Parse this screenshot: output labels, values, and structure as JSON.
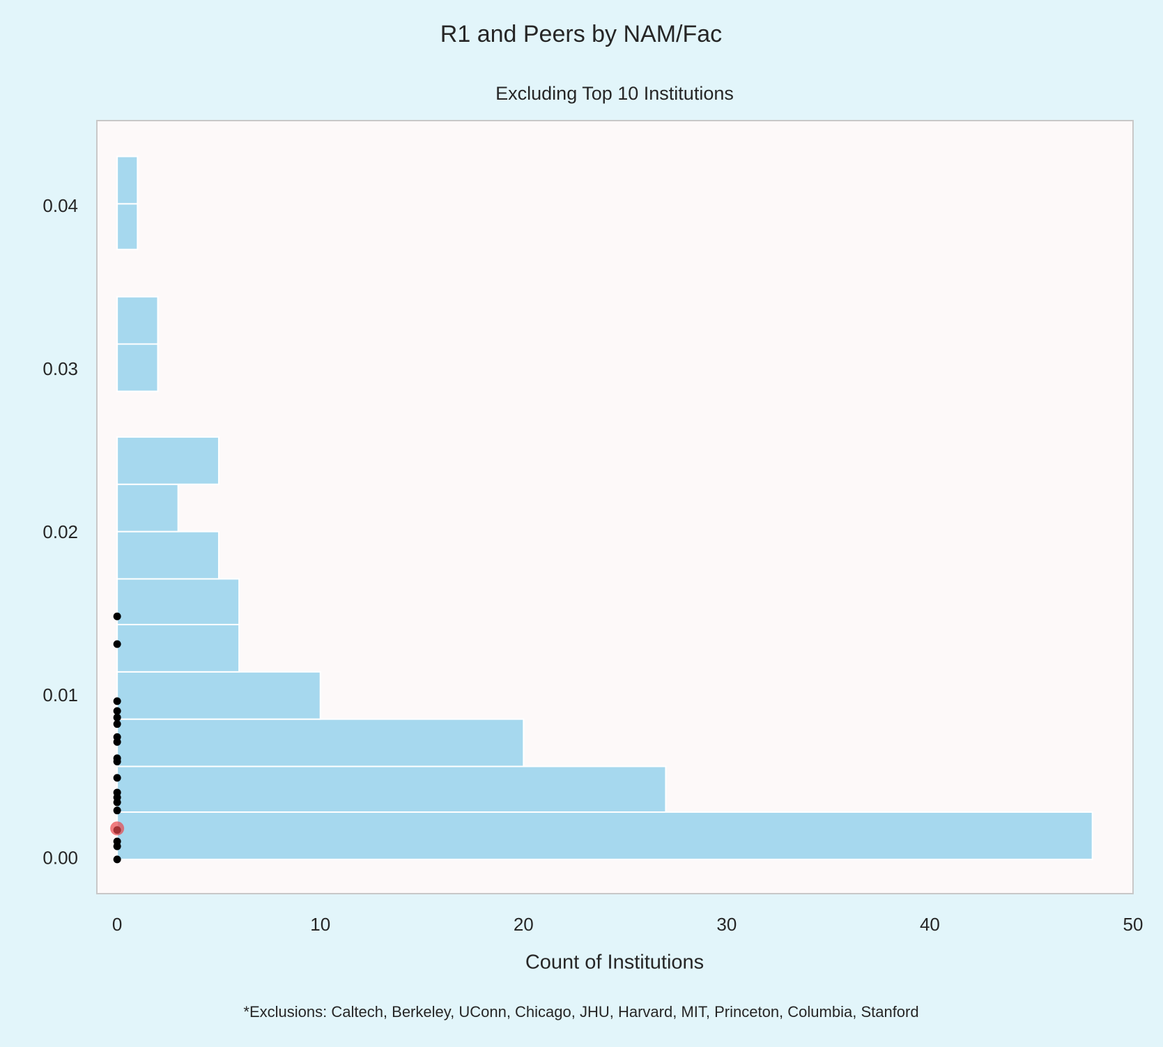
{
  "chart_data": {
    "type": "histogram",
    "orientation": "horizontal",
    "title": "R1 and Peers by NAM/Fac",
    "subtitle": "Excluding Top 10 Institutions",
    "x_label": "Count of Institutions",
    "footnote": "*Exclusions: Caltech, Berkeley, UConn, Chicago, JHU, Harvard, MIT, Princeton, Columbia, Stanford",
    "bins": [
      0,
      0.0029,
      0.0057,
      0.0086,
      0.0115,
      0.0144,
      0.0172,
      0.0201,
      0.023,
      0.0259,
      0.0287,
      0.0316,
      0.0345,
      0.0374,
      0.0402,
      0.0431
    ],
    "counts": [
      48,
      27,
      20,
      10,
      6,
      6,
      5,
      3,
      5,
      0,
      2,
      2,
      0,
      1,
      1
    ],
    "color": "#a6d8ee",
    "points": [
      {
        "color": "#000000",
        "x": [
          0,
          0,
          0,
          0,
          0,
          0,
          0,
          0,
          0,
          0,
          0,
          0,
          0,
          0,
          0,
          0,
          0,
          0,
          0
        ],
        "values": [
          0.0149,
          0.0132,
          0.0097,
          0.0091,
          0.0087,
          0.0083,
          0.0075,
          0.0072,
          0.0062,
          0.006,
          0.005,
          0.0041,
          0.0038,
          0.0035,
          0.003,
          0.0018,
          0.0011,
          0.0008,
          0
        ]
      },
      {
        "color": "#e8474c",
        "x": [
          0
        ],
        "values": [
          0.0019
        ]
      }
    ],
    "xlim": [
      -1,
      50
    ],
    "xticks": [
      0,
      10,
      20,
      30,
      40,
      50
    ],
    "ylim": [
      -0.0021,
      0.0453
    ],
    "yticks": [
      {
        "value": 0,
        "label": "0.00"
      },
      {
        "value": 0.01,
        "label": "0.01"
      },
      {
        "value": 0.02,
        "label": "0.02"
      },
      {
        "value": 0.03,
        "label": "0.03"
      },
      {
        "value": 0.04,
        "label": "0.04"
      }
    ],
    "grid": false
  }
}
